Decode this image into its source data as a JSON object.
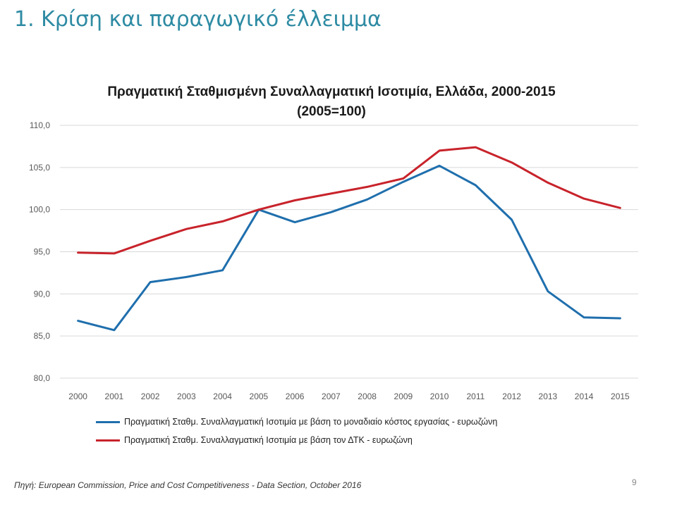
{
  "slide_title": "1. Κρίση και παραγωγικό έλλειμμα",
  "source": "Πηγή: European Commission, Price and Cost Competitiveness - Data Section, October 2016",
  "page_number": "9",
  "colors": {
    "title": "#2e8ba3",
    "series_ulc": "#1f6fad",
    "series_cpi": "#c8232b",
    "grid": "#d9d9d9"
  },
  "chart_data": {
    "type": "line",
    "title_line1": "Πραγματική Σταθμισμένη Συναλλαγματική Ισοτιμία, Ελλάδα, 2000-2015",
    "title_line2": "(2005=100)",
    "x": [
      "2000",
      "2001",
      "2002",
      "2003",
      "2004",
      "2005",
      "2006",
      "2007",
      "2008",
      "2009",
      "2010",
      "2011",
      "2012",
      "2013",
      "2014",
      "2015"
    ],
    "ylim": [
      80,
      110
    ],
    "yticks": [
      "80,0",
      "85,0",
      "90,0",
      "95,0",
      "100,0",
      "105,0",
      "110,0"
    ],
    "grid": true,
    "legend_position": "bottom",
    "series": [
      {
        "name": "Πραγματική Σταθμ. Συναλλαγματική Ισοτιμία με βάση το μοναδιαίο κόστος εργασίας - ευρωζώνη",
        "values": [
          86.8,
          85.7,
          91.4,
          92.0,
          92.8,
          100.0,
          98.5,
          99.7,
          101.2,
          103.3,
          105.2,
          102.9,
          98.8,
          90.3,
          87.2,
          87.1
        ]
      },
      {
        "name": "Πραγματική Σταθμ. Συναλλαγματική Ισοτιμία με βάση τον ΔΤΚ - ευρωζώνη",
        "values": [
          94.9,
          94.8,
          96.3,
          97.7,
          98.6,
          100.0,
          101.1,
          101.9,
          102.7,
          103.7,
          107.0,
          107.4,
          105.6,
          103.2,
          101.3,
          100.2
        ]
      }
    ]
  }
}
